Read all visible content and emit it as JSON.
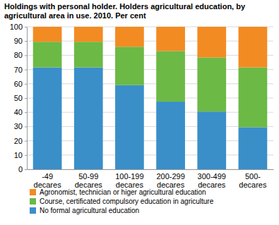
{
  "chart_data": {
    "type": "bar",
    "stacked": true,
    "title": "Holdings with personal holder. Holders agricultural education, by agricultural area in use. 2010. Per cent",
    "categories": [
      "-49 decares",
      "50-99 decares",
      "100-199 decares",
      "200-299 decares",
      "300-499 decares",
      "500- decares"
    ],
    "series": [
      {
        "name": "No formal agricultural education",
        "color": "#3a8fc9",
        "values": [
          71.5,
          71.5,
          59,
          47.5,
          40.5,
          29.5
        ]
      },
      {
        "name": "Course, certificated compulsory education in agriculture",
        "color": "#6cb945",
        "values": [
          18,
          18,
          27,
          35.5,
          38,
          42
        ]
      },
      {
        "name": "Agronomist, technician or higer agricultural education",
        "color": "#f38b23",
        "values": [
          10.5,
          10.5,
          14,
          17,
          21.5,
          28.5
        ]
      }
    ],
    "ylim": [
      0,
      100
    ],
    "yticks": [
      0,
      10,
      20,
      30,
      40,
      50,
      60,
      70,
      80,
      90,
      100
    ],
    "grid": true,
    "legend": "bottom"
  }
}
